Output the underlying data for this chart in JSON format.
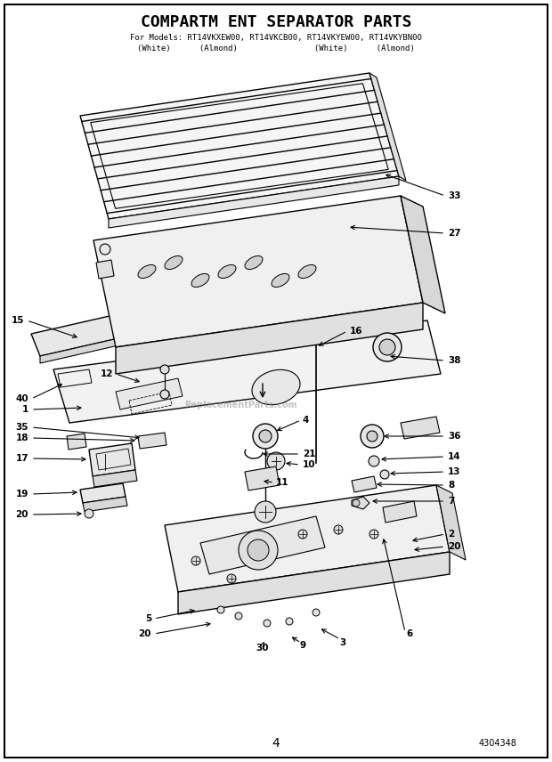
{
  "title": "COMPARTM ENT SEPARATOR PARTS",
  "subtitle_line1": "For Models: RT14VKXEW00, RT14VKCB00, RT14VKYEW00, RT14VKYBN00",
  "subtitle_line2": "(White)      (Almond)                (White)      (Almond)",
  "page_number": "4",
  "part_number": "4304348",
  "watermark": "ReplacementParts.com",
  "bg": "#ffffff",
  "lc": "#000000",
  "title_fontsize": 13,
  "sub_fontsize": 6.5,
  "label_fontsize": 7.5
}
